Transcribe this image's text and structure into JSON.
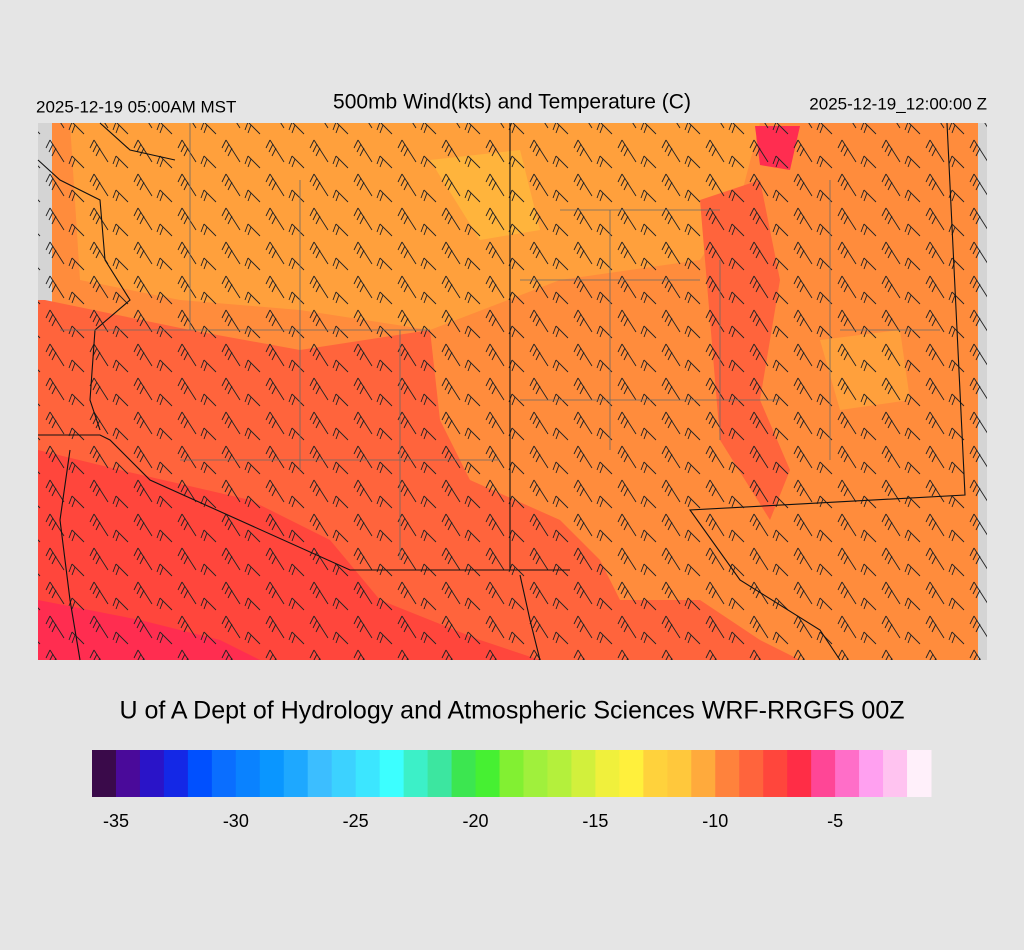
{
  "header": {
    "local_time": "2025-12-19 05:00AM MST",
    "title": "500mb Wind(kts) and Temperature (C)",
    "valid_time": "2025-12-19_12:00:00 Z"
  },
  "credit": "U of A Dept of Hydrology and Atmospheric Sciences WRF-RRGFS 00Z",
  "colorbar": {
    "limits": [
      -36,
      -1
    ],
    "ticks": [
      -35,
      -30,
      -25,
      -20,
      -15,
      -10,
      -5
    ],
    "colors": [
      "#3a0a4a",
      "#4a0a9a",
      "#2a14c8",
      "#1428e6",
      "#0050ff",
      "#0a6eff",
      "#0a82ff",
      "#0a96ff",
      "#1ea8ff",
      "#3cbeff",
      "#3cd2ff",
      "#3ce6ff",
      "#3cffff",
      "#3cf0c8",
      "#3ce6a0",
      "#3ce650",
      "#46f032",
      "#82f032",
      "#a0f03c",
      "#b4f03c",
      "#d2f03c",
      "#f0f03c",
      "#fff03c",
      "#ffd23c",
      "#ffc83c",
      "#ffaa3c",
      "#ff823c",
      "#ff643c",
      "#ff463c",
      "#ff2d46",
      "#ff4696",
      "#ff6ec8",
      "#ffa0f0",
      "#ffc3f0",
      "#fff0fa"
    ]
  }
}
